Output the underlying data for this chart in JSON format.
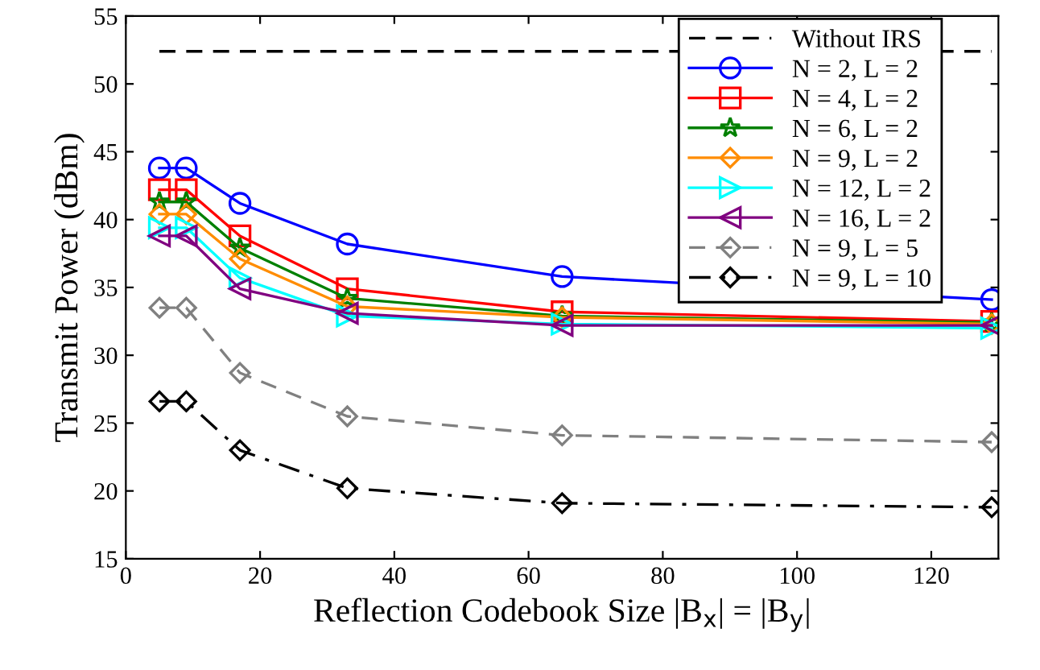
{
  "chart_data": {
    "type": "line",
    "xlabel": "Reflection Codebook Size |B$_{x}$| = |B$_{y}$|",
    "ylabel": "Transmit Power (dBm)",
    "xlim": [
      0,
      130
    ],
    "xticks": [
      0,
      20,
      40,
      60,
      80,
      100,
      120
    ],
    "ylim": [
      15,
      55
    ],
    "yticks": [
      15,
      20,
      25,
      30,
      35,
      40,
      45,
      50,
      55
    ],
    "grid": false,
    "legend": "top right",
    "series": [
      {
        "name": "Without IRS",
        "color": "#000000",
        "x": [
          5,
          129
        ],
        "values": [
          52.4,
          52.4
        ],
        "marker": "none",
        "line_style": "dashed"
      },
      {
        "name": "N = 2, L = 2",
        "color": "#0000ff",
        "x": [
          5,
          9,
          17,
          33,
          65,
          129
        ],
        "values": [
          43.8,
          43.8,
          41.2,
          38.2,
          35.8,
          34.1
        ],
        "marker": "circle",
        "line_style": "solid"
      },
      {
        "name": "N = 4, L = 2",
        "color": "#ff0000",
        "x": [
          5,
          9,
          17,
          33,
          65,
          129
        ],
        "values": [
          42.2,
          42.2,
          38.8,
          34.9,
          33.2,
          32.5
        ],
        "marker": "square",
        "line_style": "solid"
      },
      {
        "name": "N = 6, L = 2",
        "color": "#008000",
        "x": [
          5,
          9,
          17,
          33,
          65,
          129
        ],
        "values": [
          41.3,
          41.3,
          37.9,
          34.2,
          32.9,
          32.4
        ],
        "marker": "star",
        "line_style": "solid"
      },
      {
        "name": "N = 9, L = 2",
        "color": "#ff8c00",
        "x": [
          5,
          9,
          17,
          33,
          65,
          129
        ],
        "values": [
          40.4,
          40.4,
          37.1,
          33.6,
          32.8,
          32.3
        ],
        "marker": "diamond",
        "line_style": "solid"
      },
      {
        "name": "N = 12, L = 2",
        "color": "#00ffff",
        "x": [
          5,
          9,
          17,
          33,
          65,
          129
        ],
        "values": [
          39.4,
          39.4,
          35.7,
          32.9,
          32.3,
          32.0
        ],
        "marker": "triangle_right",
        "line_style": "solid"
      },
      {
        "name": "N = 16, L = 2",
        "color": "#800080",
        "x": [
          5,
          9,
          17,
          33,
          65,
          129
        ],
        "values": [
          38.8,
          38.8,
          34.9,
          33.1,
          32.2,
          32.2
        ],
        "marker": "triangle_left",
        "line_style": "solid"
      },
      {
        "name": "N = 9, L = 5",
        "color": "#808080",
        "x": [
          5,
          9,
          17,
          33,
          65,
          129
        ],
        "values": [
          33.5,
          33.5,
          28.7,
          25.5,
          24.1,
          23.6
        ],
        "marker": "diamond",
        "line_style": "dashed"
      },
      {
        "name": "N = 9, L = 10",
        "color": "#000000",
        "x": [
          5,
          9,
          17,
          33,
          65,
          129
        ],
        "values": [
          26.6,
          26.6,
          23.0,
          20.2,
          19.1,
          18.8
        ],
        "marker": "diamond",
        "line_style": "dashdot"
      }
    ]
  }
}
